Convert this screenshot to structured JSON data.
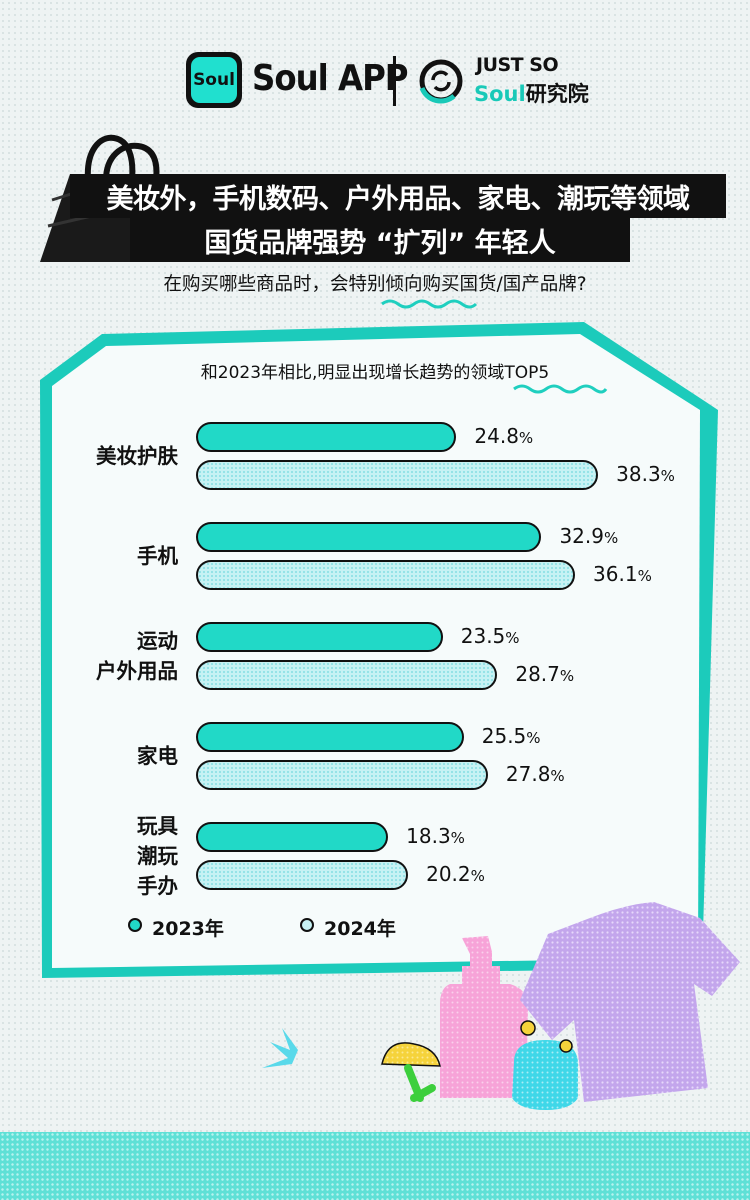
{
  "header": {
    "soul_icon_text": "Soul",
    "brand": "Soul APP",
    "partner_top": "JUST SO",
    "partner_soul": "Soul",
    "partner_inst": "研究院"
  },
  "headline": {
    "line1": "美妆外，手机数码、户外用品、家电、潮玩等领域",
    "line2": "国货品牌强势 “扩列” 年轻人"
  },
  "question": "在购买哪些商品时，会特别倾向购买国货/国产品牌?",
  "chart_data": {
    "type": "bar",
    "orientation": "horizontal",
    "title": "和2023年相比,明显出现增长趋势的领域TOP5",
    "categories": [
      {
        "lines": [
          "美妆护肤"
        ]
      },
      {
        "lines": [
          "手机"
        ]
      },
      {
        "lines": [
          "运动",
          "户外用品"
        ]
      },
      {
        "lines": [
          "家电"
        ]
      },
      {
        "lines": [
          "玩具",
          "潮玩",
          "手办"
        ]
      }
    ],
    "series": [
      {
        "name": "2023年",
        "color": "#21d9c7",
        "values": [
          24.8,
          32.9,
          23.5,
          25.5,
          18.3
        ]
      },
      {
        "name": "2024年",
        "color": "#c7f2f4",
        "values": [
          38.3,
          36.1,
          28.7,
          27.8,
          20.2
        ]
      }
    ],
    "value_labels": {
      "2023年": [
        "24.8",
        "32.9",
        "23.5",
        "25.5",
        "18.3"
      ],
      "2024年": [
        "38.3",
        "36.1",
        "28.7",
        "27.8",
        "20.2"
      ]
    },
    "unit": "%",
    "legend_position": "bottom-left",
    "grid": false
  }
}
